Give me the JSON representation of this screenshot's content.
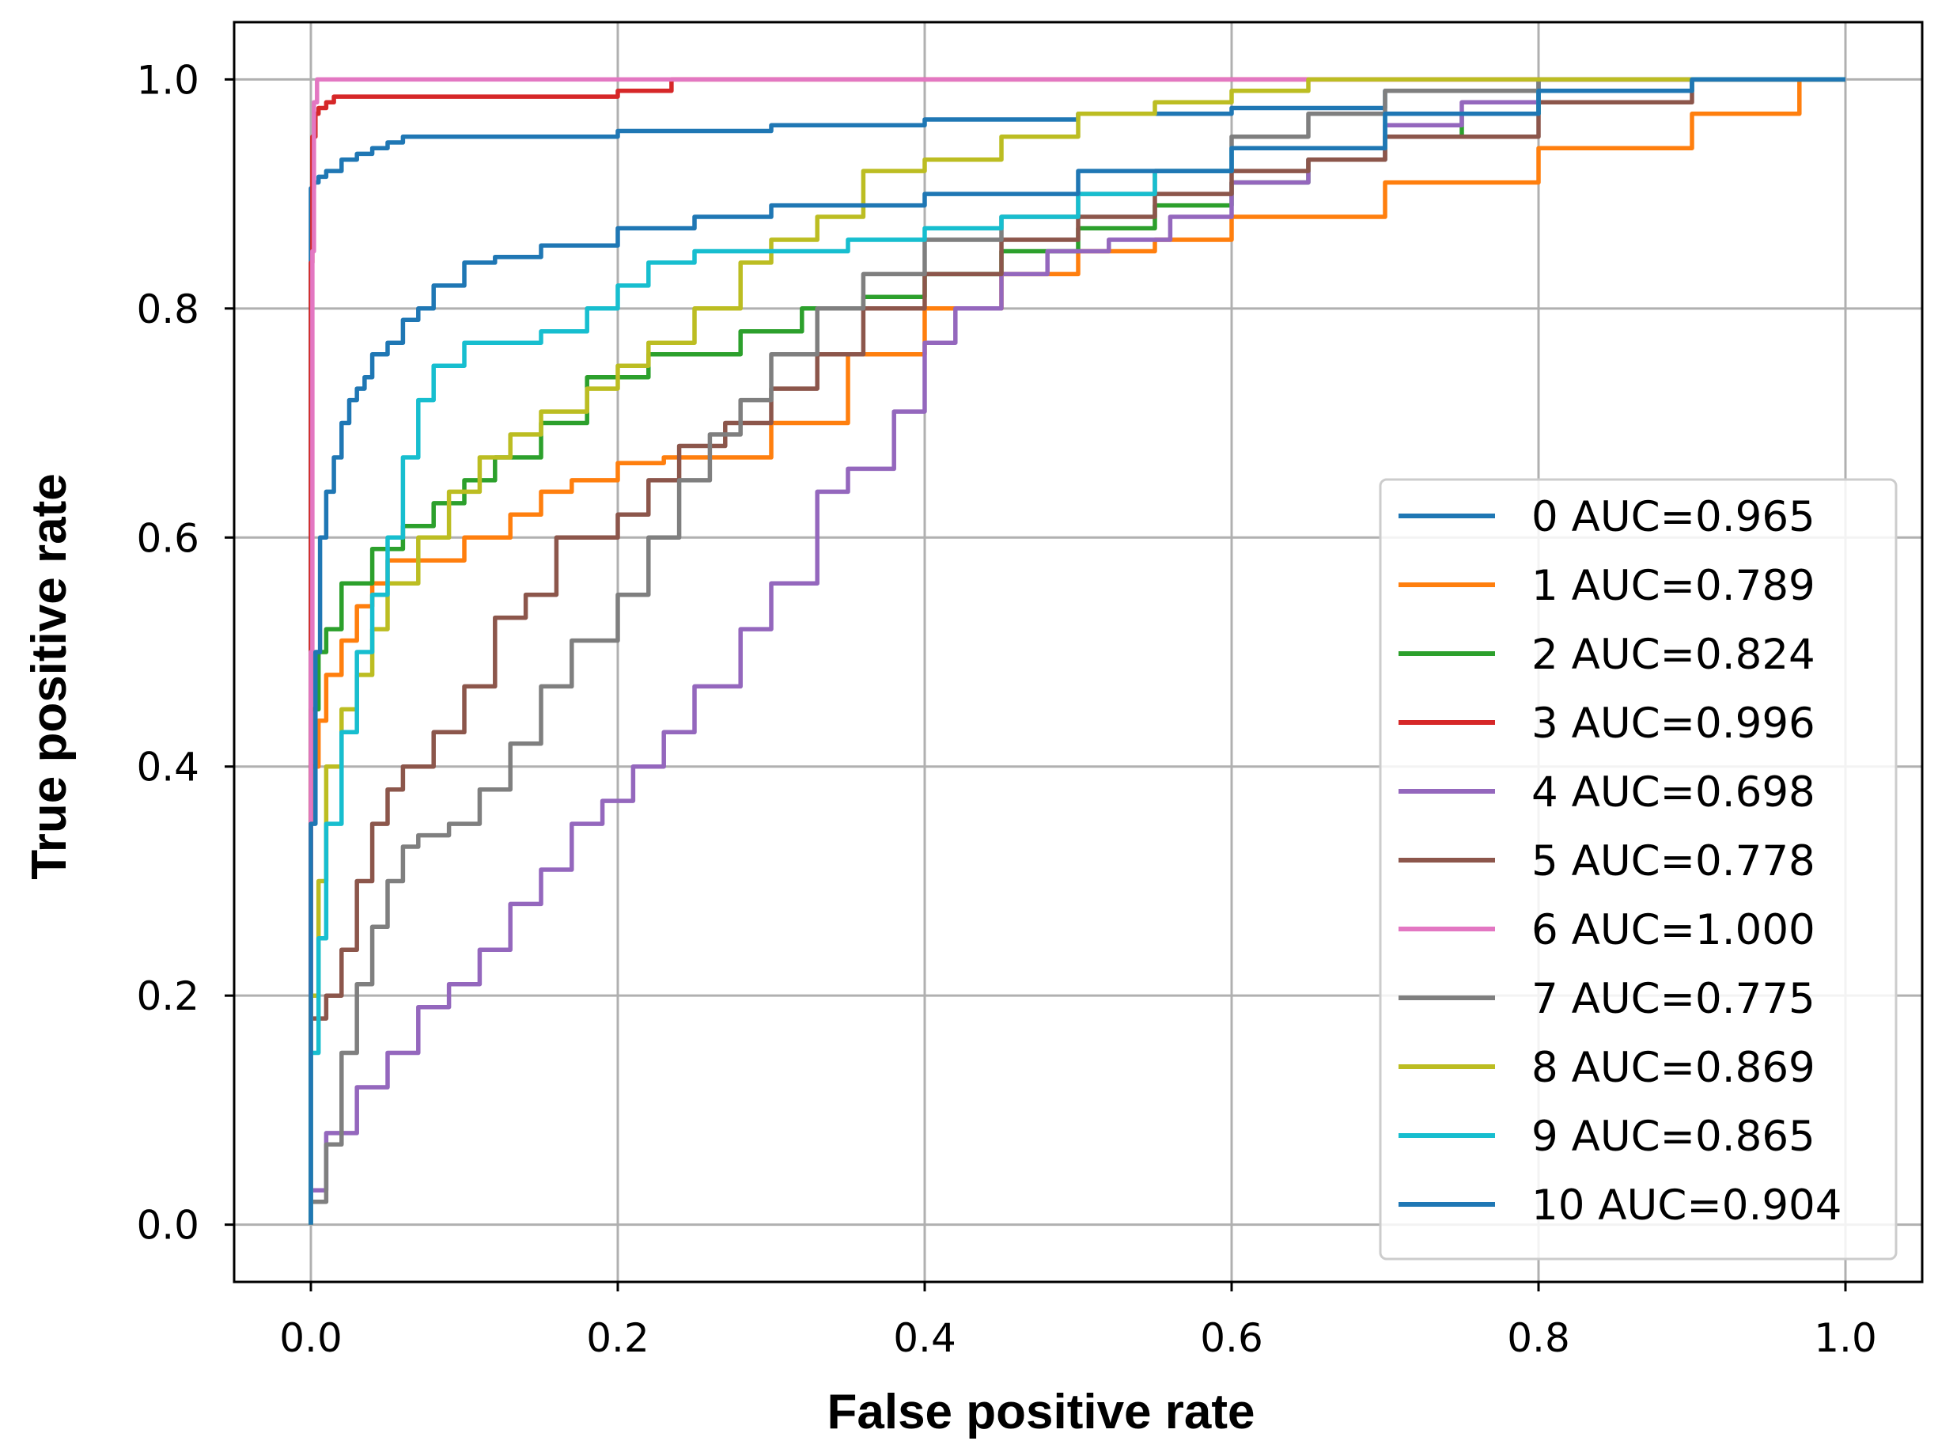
{
  "chart_data": {
    "type": "line",
    "title": "",
    "xlabel": "False positive rate",
    "ylabel": "True positive rate",
    "xlim": [
      -0.05,
      1.05
    ],
    "ylim": [
      -0.05,
      1.05
    ],
    "xticks": [
      0.0,
      0.2,
      0.4,
      0.6,
      0.8,
      1.0
    ],
    "xtick_labels": [
      "0.0",
      "0.2",
      "0.4",
      "0.6",
      "0.8",
      "1.0"
    ],
    "yticks": [
      0.0,
      0.2,
      0.4,
      0.6,
      0.8,
      1.0
    ],
    "ytick_labels": [
      "0.0",
      "0.2",
      "0.4",
      "0.6",
      "0.8",
      "1.0"
    ],
    "grid": true,
    "legend_position": "lower-right",
    "series": [
      {
        "name": "0 AUC=0.965",
        "color": "#1f77b4",
        "x": [
          0,
          0,
          0.002,
          0.005,
          0.01,
          0.02,
          0.03,
          0.04,
          0.05,
          0.06,
          0.065,
          0.2,
          0.3,
          0.4,
          0.5,
          0.6,
          0.7,
          0.8,
          1.0
        ],
        "y": [
          0,
          0.88,
          0.905,
          0.91,
          0.915,
          0.92,
          0.93,
          0.935,
          0.94,
          0.945,
          0.95,
          0.95,
          0.955,
          0.96,
          0.965,
          0.97,
          0.975,
          0.99,
          1.0
        ]
      },
      {
        "name": "1 AUC=0.789",
        "color": "#ff7f0e",
        "x": [
          0,
          0.005,
          0.01,
          0.02,
          0.03,
          0.04,
          0.05,
          0.07,
          0.1,
          0.13,
          0.15,
          0.17,
          0.2,
          0.23,
          0.3,
          0.35,
          0.4,
          0.45,
          0.5,
          0.55,
          0.6,
          0.7,
          0.8,
          0.9,
          0.97,
          1.0
        ],
        "y": [
          0,
          0.4,
          0.44,
          0.48,
          0.51,
          0.54,
          0.56,
          0.58,
          0.58,
          0.6,
          0.62,
          0.64,
          0.65,
          0.665,
          0.67,
          0.7,
          0.76,
          0.8,
          0.83,
          0.85,
          0.86,
          0.88,
          0.91,
          0.94,
          0.97,
          1.0
        ]
      },
      {
        "name": "2 AUC=0.824",
        "color": "#2ca02c",
        "x": [
          0,
          0.005,
          0.01,
          0.02,
          0.04,
          0.06,
          0.08,
          0.1,
          0.12,
          0.15,
          0.18,
          0.22,
          0.28,
          0.32,
          0.36,
          0.4,
          0.45,
          0.5,
          0.55,
          0.6,
          0.65,
          0.7,
          0.75,
          0.8,
          0.9,
          1.0
        ],
        "y": [
          0,
          0.45,
          0.5,
          0.52,
          0.56,
          0.59,
          0.61,
          0.63,
          0.65,
          0.67,
          0.7,
          0.74,
          0.76,
          0.78,
          0.8,
          0.81,
          0.83,
          0.85,
          0.87,
          0.89,
          0.91,
          0.93,
          0.95,
          0.97,
          0.99,
          1.0
        ]
      },
      {
        "name": "3 AUC=0.996",
        "color": "#d62728",
        "x": [
          0,
          0.001,
          0.003,
          0.005,
          0.01,
          0.015,
          0.02,
          0.1,
          0.2,
          0.235,
          0.235,
          1.0
        ],
        "y": [
          0,
          0.84,
          0.95,
          0.97,
          0.975,
          0.98,
          0.985,
          0.985,
          0.985,
          0.99,
          1.0,
          1.0
        ]
      },
      {
        "name": "4 AUC=0.698",
        "color": "#9467bd",
        "x": [
          0,
          0.01,
          0.03,
          0.05,
          0.07,
          0.09,
          0.11,
          0.13,
          0.15,
          0.17,
          0.19,
          0.21,
          0.23,
          0.25,
          0.28,
          0.3,
          0.33,
          0.35,
          0.38,
          0.4,
          0.42,
          0.45,
          0.48,
          0.52,
          0.56,
          0.6,
          0.65,
          0.7,
          0.75,
          0.8,
          0.9,
          1.0
        ],
        "y": [
          0,
          0.03,
          0.08,
          0.12,
          0.15,
          0.19,
          0.21,
          0.24,
          0.28,
          0.31,
          0.35,
          0.37,
          0.4,
          0.43,
          0.47,
          0.52,
          0.56,
          0.64,
          0.66,
          0.71,
          0.77,
          0.8,
          0.83,
          0.85,
          0.86,
          0.88,
          0.91,
          0.93,
          0.96,
          0.98,
          0.99,
          1.0
        ]
      },
      {
        "name": "5 AUC=0.778",
        "color": "#8c564b",
        "x": [
          0,
          0.01,
          0.02,
          0.03,
          0.04,
          0.05,
          0.06,
          0.07,
          0.08,
          0.1,
          0.12,
          0.14,
          0.16,
          0.18,
          0.2,
          0.22,
          0.24,
          0.27,
          0.3,
          0.33,
          0.36,
          0.4,
          0.45,
          0.5,
          0.55,
          0.6,
          0.65,
          0.7,
          0.8,
          0.9,
          1.0
        ],
        "y": [
          0,
          0.18,
          0.2,
          0.24,
          0.3,
          0.35,
          0.38,
          0.4,
          0.4,
          0.43,
          0.47,
          0.53,
          0.55,
          0.6,
          0.6,
          0.62,
          0.65,
          0.68,
          0.7,
          0.73,
          0.76,
          0.8,
          0.83,
          0.86,
          0.88,
          0.9,
          0.92,
          0.93,
          0.95,
          0.98,
          1.0
        ]
      },
      {
        "name": "6 AUC=1.000",
        "color": "#e377c2",
        "x": [
          0,
          0,
          0.001,
          0.002,
          0.004,
          0.005,
          1.0
        ],
        "y": [
          0,
          0.25,
          0.5,
          0.85,
          0.98,
          1.0,
          1.0
        ]
      },
      {
        "name": "7 AUC=0.775",
        "color": "#7f7f7f",
        "x": [
          0,
          0.01,
          0.02,
          0.03,
          0.04,
          0.05,
          0.06,
          0.07,
          0.09,
          0.11,
          0.13,
          0.15,
          0.17,
          0.2,
          0.22,
          0.24,
          0.26,
          0.28,
          0.3,
          0.33,
          0.36,
          0.4,
          0.45,
          0.5,
          0.55,
          0.6,
          0.65,
          0.7,
          0.8,
          0.9,
          1.0
        ],
        "y": [
          0,
          0.02,
          0.07,
          0.15,
          0.21,
          0.26,
          0.3,
          0.33,
          0.34,
          0.35,
          0.38,
          0.42,
          0.47,
          0.51,
          0.55,
          0.6,
          0.65,
          0.69,
          0.72,
          0.76,
          0.8,
          0.83,
          0.86,
          0.88,
          0.9,
          0.92,
          0.95,
          0.97,
          0.99,
          1.0,
          1.0
        ]
      },
      {
        "name": "8 AUC=0.869",
        "color": "#bcbd22",
        "x": [
          0,
          0.005,
          0.01,
          0.02,
          0.03,
          0.04,
          0.05,
          0.07,
          0.09,
          0.11,
          0.13,
          0.15,
          0.18,
          0.2,
          0.22,
          0.25,
          0.28,
          0.3,
          0.33,
          0.36,
          0.4,
          0.45,
          0.5,
          0.55,
          0.6,
          0.65,
          0.7,
          0.75,
          0.82,
          1.0
        ],
        "y": [
          0,
          0.2,
          0.3,
          0.4,
          0.45,
          0.48,
          0.52,
          0.56,
          0.6,
          0.64,
          0.67,
          0.69,
          0.71,
          0.73,
          0.75,
          0.77,
          0.8,
          0.84,
          0.86,
          0.88,
          0.92,
          0.93,
          0.95,
          0.97,
          0.98,
          0.99,
          1.0,
          1.0,
          1.0,
          1.0
        ]
      },
      {
        "name": "9 AUC=0.865",
        "color": "#17becf",
        "x": [
          0,
          0.005,
          0.01,
          0.02,
          0.03,
          0.04,
          0.05,
          0.06,
          0.07,
          0.08,
          0.1,
          0.12,
          0.15,
          0.18,
          0.2,
          0.22,
          0.25,
          0.3,
          0.35,
          0.4,
          0.45,
          0.5,
          0.55,
          0.6,
          0.7,
          0.8,
          0.9,
          1.0
        ],
        "y": [
          0,
          0.15,
          0.25,
          0.35,
          0.43,
          0.5,
          0.55,
          0.6,
          0.67,
          0.72,
          0.75,
          0.77,
          0.77,
          0.78,
          0.8,
          0.82,
          0.84,
          0.85,
          0.85,
          0.86,
          0.87,
          0.88,
          0.9,
          0.92,
          0.94,
          0.97,
          0.99,
          1.0
        ]
      },
      {
        "name": "10 AUC=0.904",
        "color": "#1f77b4",
        "x": [
          0,
          0.003,
          0.006,
          0.01,
          0.015,
          0.02,
          0.025,
          0.03,
          0.035,
          0.04,
          0.05,
          0.06,
          0.07,
          0.08,
          0.1,
          0.12,
          0.15,
          0.2,
          0.25,
          0.3,
          0.4,
          0.5,
          0.6,
          0.7,
          0.8,
          0.9,
          1.0
        ],
        "y": [
          0,
          0.35,
          0.5,
          0.6,
          0.64,
          0.67,
          0.7,
          0.72,
          0.73,
          0.74,
          0.76,
          0.77,
          0.79,
          0.8,
          0.82,
          0.84,
          0.845,
          0.855,
          0.87,
          0.88,
          0.89,
          0.9,
          0.92,
          0.94,
          0.97,
          0.99,
          1.0
        ]
      }
    ]
  }
}
